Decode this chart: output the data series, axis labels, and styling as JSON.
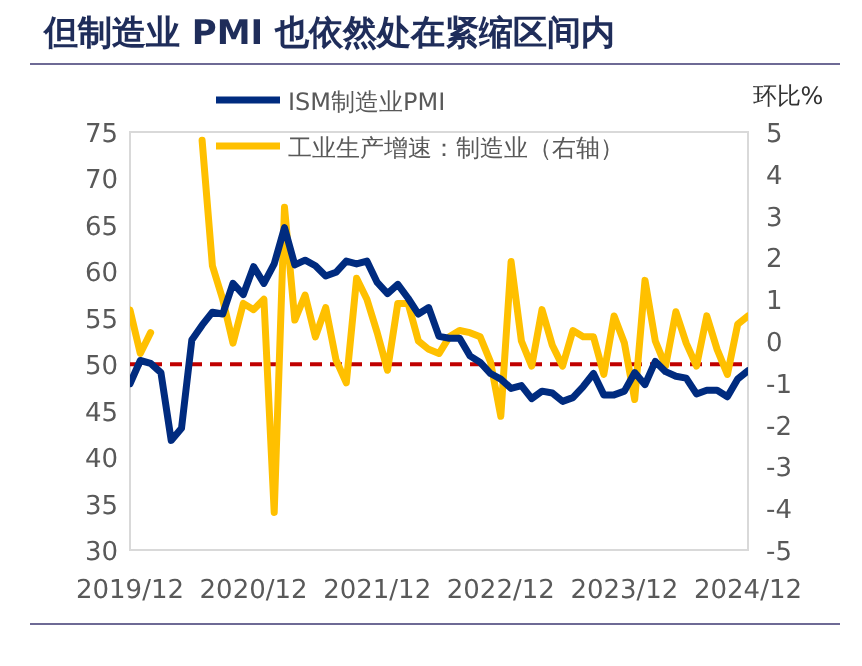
{
  "chart_data": {
    "type": "line",
    "title": "但制造业 PMI 也依然处在紧缩区间内",
    "y2label": "环比%",
    "x": [
      "2019-12",
      "2020-01",
      "2020-02",
      "2020-03",
      "2020-04",
      "2020-05",
      "2020-06",
      "2020-07",
      "2020-08",
      "2020-09",
      "2020-10",
      "2020-11",
      "2020-12",
      "2021-01",
      "2021-02",
      "2021-03",
      "2021-04",
      "2021-05",
      "2021-06",
      "2021-07",
      "2021-08",
      "2021-09",
      "2021-10",
      "2021-11",
      "2021-12",
      "2022-01",
      "2022-02",
      "2022-03",
      "2022-04",
      "2022-05",
      "2022-06",
      "2022-07",
      "2022-08",
      "2022-09",
      "2022-10",
      "2022-11",
      "2022-12",
      "2023-01",
      "2023-02",
      "2023-03",
      "2023-04",
      "2023-05",
      "2023-06",
      "2023-07",
      "2023-08",
      "2023-09",
      "2023-10",
      "2023-11",
      "2023-12",
      "2024-01",
      "2024-02",
      "2024-03",
      "2024-04",
      "2024-05",
      "2024-06",
      "2024-07",
      "2024-08",
      "2024-09",
      "2024-10",
      "2024-11",
      "2024-12"
    ],
    "series": [
      {
        "name": "ISM制造业PMI",
        "color": "#002b7f",
        "values": [
          47.9,
          50.4,
          50.1,
          49.1,
          41.8,
          43.1,
          52.6,
          54.2,
          55.6,
          55.4,
          58.7,
          57.5,
          60.5,
          58.7,
          60.8,
          64.7,
          60.7,
          61.2,
          60.6,
          59.5,
          59.9,
          61.1,
          60.8,
          61.1,
          58.8,
          57.6,
          58.6,
          57.1,
          55.4,
          56.1,
          53,
          52.8,
          52.8,
          50.9,
          50.2,
          49,
          48.4,
          47.4,
          47.7,
          46.3,
          47.1,
          46.9,
          46,
          46.4,
          47.6,
          49,
          46.7,
          46.7,
          47.1,
          49.1,
          47.8,
          50.3,
          49.2,
          48.7,
          48.5,
          46.8,
          47.2,
          47.2,
          46.5,
          48.4,
          49.3
        ]
      },
      {
        "name": "工业生产增速：制造业（右轴）",
        "color": "#ffc000",
        "axis": "y2",
        "values": [
          0.74,
          -0.3,
          0.2,
          null,
          null,
          null,
          null,
          4.8,
          1.8,
          1.0,
          -0.05,
          0.9,
          0.75,
          1.0,
          -4.1,
          3.2,
          0.5,
          1.1,
          0.1,
          0.8,
          -0.45,
          -1.0,
          1.5,
          1.0,
          0.2,
          -0.7,
          0.9,
          0.9,
          0.0,
          -0.2,
          -0.3,
          0.1,
          0.25,
          0.2,
          0.1,
          -0.5,
          -1.8,
          1.9,
          0,
          -0.6,
          0.75,
          -0.1,
          -0.6,
          0.25,
          0.1,
          0.1,
          -0.8,
          0.6,
          -0.05,
          -1.4,
          1.45,
          0.0,
          -0.6,
          0.7,
          -0.05,
          -0.6,
          0.6,
          -0.2,
          -0.8,
          0.4,
          0.6
        ]
      }
    ],
    "xlim": [
      "2019-12",
      "2024-12"
    ],
    "xticks": [
      {
        "value": "2019-12",
        "label": "2019/12"
      },
      {
        "value": "2020-12",
        "label": "2020/12"
      },
      {
        "value": "2021-12",
        "label": "2021/12"
      },
      {
        "value": "2022-12",
        "label": "2022/12"
      },
      {
        "value": "2023-12",
        "label": "2023/12"
      },
      {
        "value": "2024-12",
        "label": "2024/12"
      }
    ],
    "ylim": [
      30,
      75
    ],
    "yticks": [
      30,
      35,
      40,
      45,
      50,
      55,
      60,
      65,
      70,
      75
    ],
    "y2lim": [
      -5,
      5
    ],
    "y2ticks": [
      -5,
      -4,
      -3,
      -2,
      -1,
      0,
      1,
      2,
      3,
      4,
      5
    ],
    "ref_lines": [
      {
        "axis": "y",
        "value": 50,
        "color": "#c00000",
        "line_style": "dashed"
      }
    ],
    "legend": "top",
    "grid": false
  }
}
